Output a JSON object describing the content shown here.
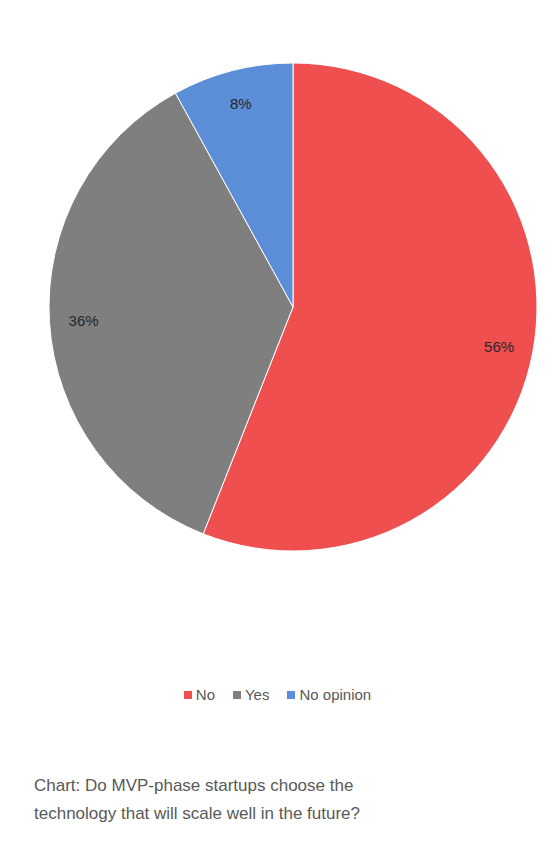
{
  "chart_data": {
    "type": "pie",
    "title": "Chart: Do MVP-phase startups choose the technology that will scale well in the future?",
    "categories": [
      "No",
      "Yes",
      "No opinion"
    ],
    "values": [
      56,
      36,
      8
    ],
    "value_labels": [
      "56%",
      "36%",
      "8%"
    ],
    "colors": [
      "#f04f50",
      "#7f7f7f",
      "#5b8ed6"
    ],
    "data_labels": true,
    "legend": "bottom"
  }
}
